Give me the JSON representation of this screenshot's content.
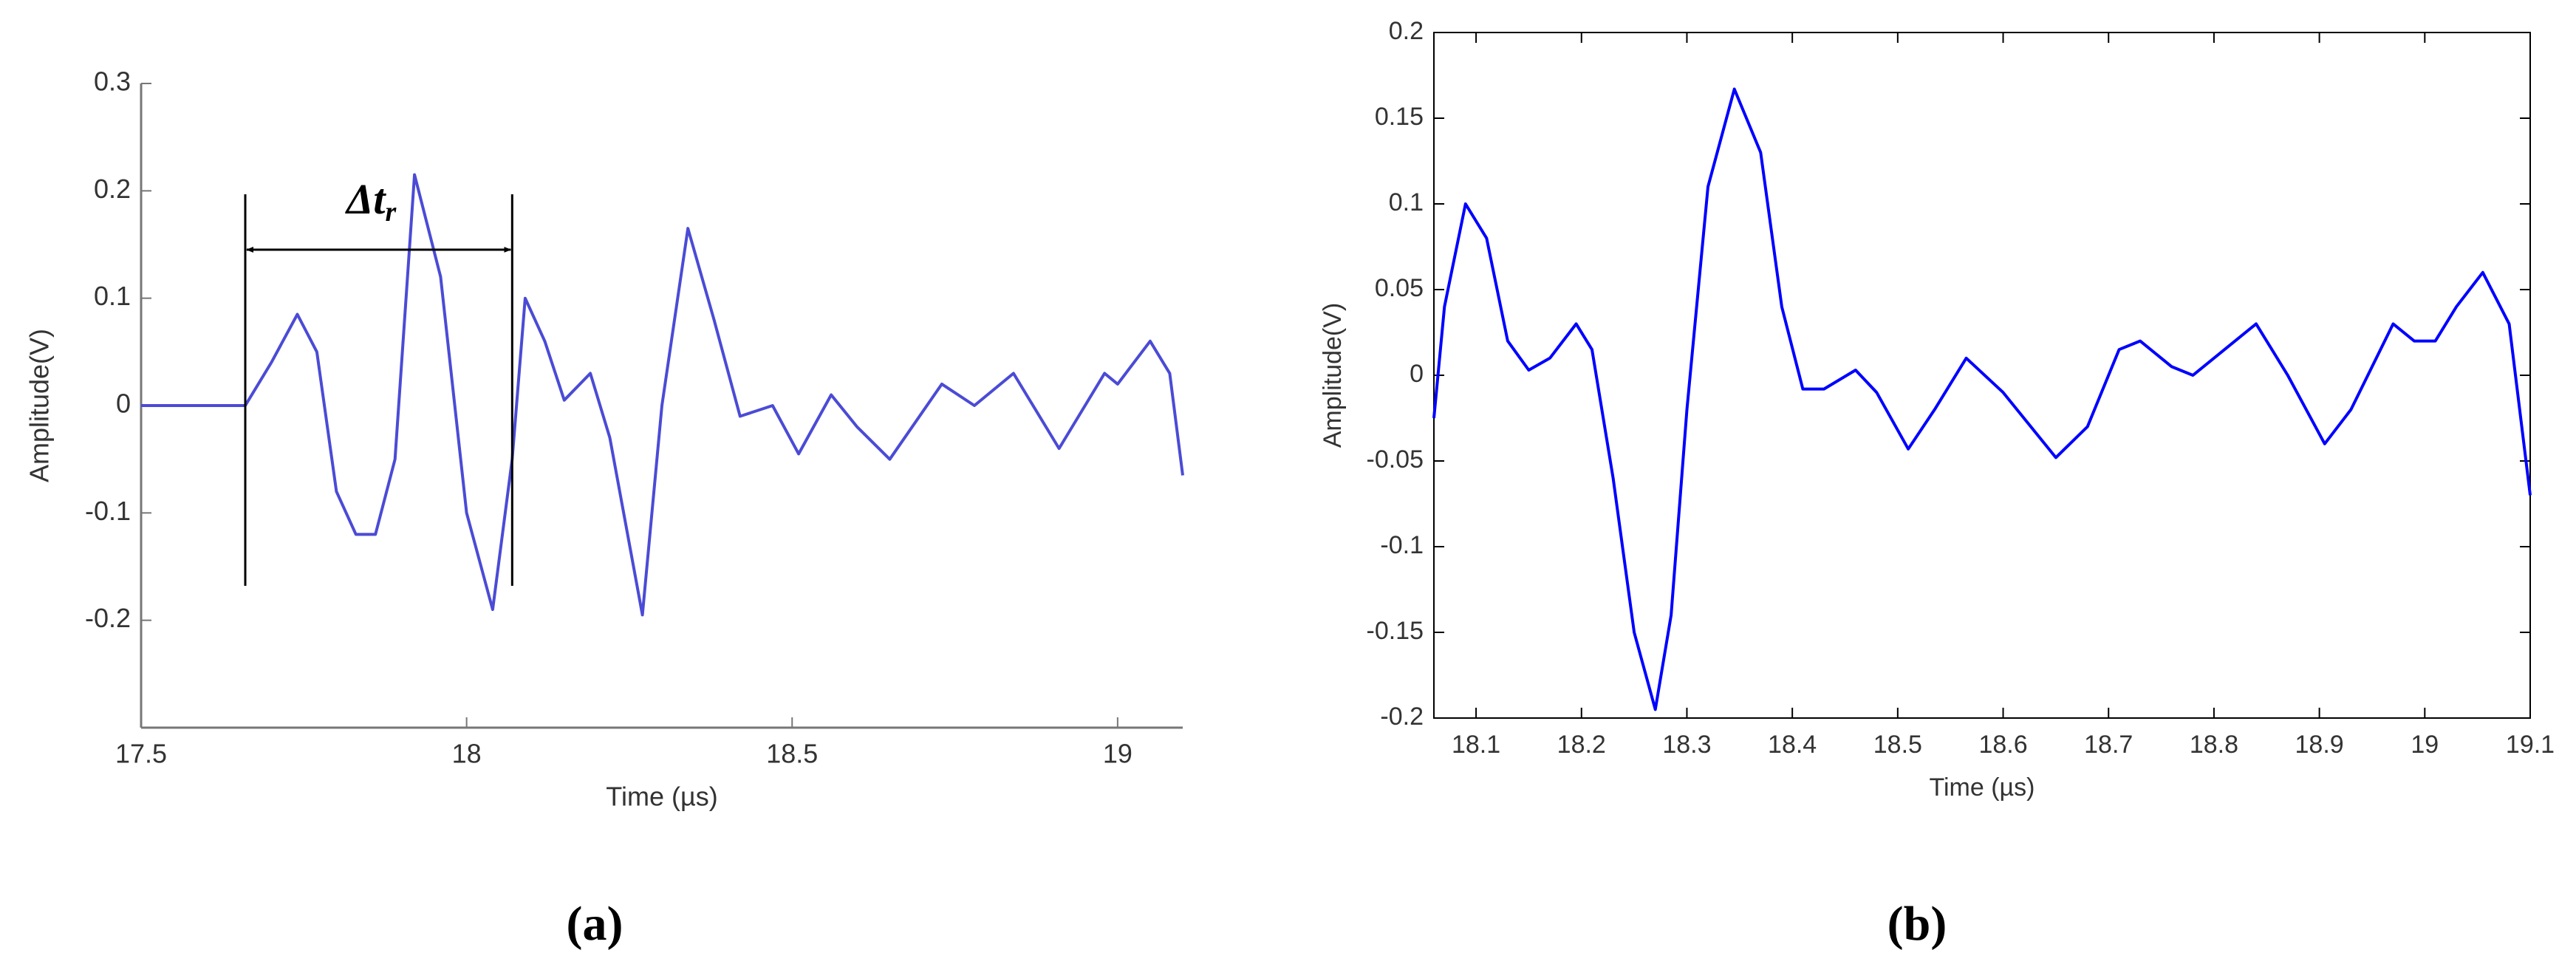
{
  "chart_data": [
    {
      "type": "line",
      "label": "(a)",
      "x_label": "Time (µs)",
      "y_label": "Amplitude(V)",
      "color": "#4b4bd6",
      "box": false,
      "xlim": [
        17.5,
        19.1
      ],
      "xticks": [
        17.5,
        18,
        18.5,
        19
      ],
      "ylim": [
        -0.3,
        0.3
      ],
      "yticks": [
        -0.2,
        -0.1,
        0,
        0.1,
        0.2,
        0.3
      ],
      "x": [
        17.5,
        17.6,
        17.66,
        17.7,
        17.74,
        17.77,
        17.8,
        17.83,
        17.86,
        17.89,
        17.92,
        17.96,
        18.0,
        18.04,
        18.07,
        18.09,
        18.12,
        18.15,
        18.19,
        18.22,
        18.27,
        18.3,
        18.34,
        18.38,
        18.42,
        18.47,
        18.51,
        18.56,
        18.6,
        18.65,
        18.73,
        18.78,
        18.84,
        18.91,
        18.98,
        19.0,
        19.05,
        19.08,
        19.1
      ],
      "values": [
        0,
        0,
        0,
        0.04,
        0.085,
        0.05,
        -0.08,
        -0.12,
        -0.12,
        -0.05,
        0.215,
        0.12,
        -0.1,
        -0.19,
        -0.05,
        0.1,
        0.06,
        0.005,
        0.03,
        -0.03,
        -0.195,
        0.0,
        0.165,
        0.08,
        -0.01,
        0.0,
        -0.045,
        0.01,
        -0.02,
        -0.05,
        0.02,
        0.0,
        0.03,
        -0.04,
        0.03,
        0.02,
        0.06,
        0.03,
        -0.065
      ],
      "markers": [
        17.66,
        18.07
      ],
      "annotation": {
        "text": "Δt",
        "subscript": "r"
      }
    },
    {
      "type": "line",
      "label": "(b)",
      "x_label": "Time (µs)",
      "y_label": "Amplitude(V)",
      "color": "#0000ff",
      "box": true,
      "xlim": [
        18.06,
        19.1
      ],
      "xticks": [
        18.1,
        18.2,
        18.3,
        18.4,
        18.5,
        18.6,
        18.7,
        18.8,
        18.9,
        19,
        19.1
      ],
      "ylim": [
        -0.2,
        0.2
      ],
      "yticks": [
        -0.2,
        -0.15,
        -0.1,
        -0.05,
        0,
        0.05,
        0.1,
        0.15,
        0.2
      ],
      "x": [
        18.06,
        18.07,
        18.09,
        18.11,
        18.13,
        18.15,
        18.17,
        18.195,
        18.21,
        18.23,
        18.25,
        18.27,
        18.285,
        18.3,
        18.32,
        18.345,
        18.37,
        18.39,
        18.41,
        18.43,
        18.46,
        18.48,
        18.51,
        18.535,
        18.565,
        18.6,
        18.65,
        18.68,
        18.71,
        18.73,
        18.76,
        18.78,
        18.81,
        18.84,
        18.87,
        18.905,
        18.93,
        18.97,
        18.99,
        19.01,
        19.03,
        19.055,
        19.08,
        19.1
      ],
      "values": [
        -0.025,
        0.04,
        0.1,
        0.08,
        0.02,
        0.003,
        0.01,
        0.03,
        0.015,
        -0.06,
        -0.15,
        -0.195,
        -0.14,
        -0.02,
        0.11,
        0.167,
        0.13,
        0.04,
        -0.008,
        -0.008,
        0.003,
        -0.01,
        -0.043,
        -0.02,
        0.01,
        -0.01,
        -0.048,
        -0.03,
        0.015,
        0.02,
        0.005,
        0.0,
        0.015,
        0.03,
        0.0,
        -0.04,
        -0.02,
        0.03,
        0.02,
        0.02,
        0.04,
        0.06,
        0.03,
        -0.07
      ]
    }
  ]
}
